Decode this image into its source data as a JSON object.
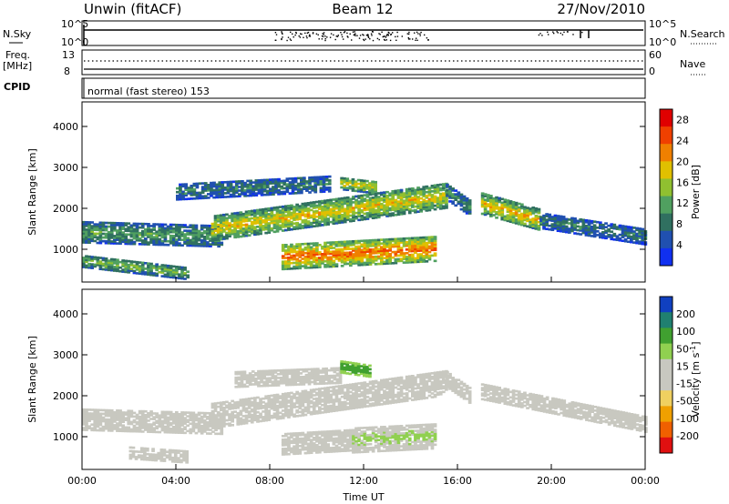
{
  "header": {
    "station": "Unwin (fitACF)",
    "beam": "Beam 12",
    "date": "27/Nov/2010"
  },
  "strip_labels": {
    "nsky": "N.Sky",
    "nsearch": "N.Search",
    "freq_line1": "Freq.",
    "freq_line2": "[MHz]",
    "nave": "Nave",
    "cpid": "CPID",
    "cpid_value": "normal (fast stereo) 153",
    "nsky_top": "10^5",
    "nsky_bottom": "10^0",
    "freq_top": "13",
    "freq_bottom": "8",
    "nave_top": "60",
    "nave_bottom": "0"
  },
  "colors": {
    "power": [
      "#1030f0",
      "#2050b0",
      "#307060",
      "#50a060",
      "#90c030",
      "#e0c000",
      "#f08000",
      "#f04000",
      "#e00000"
    ],
    "velocity": [
      "#e01010",
      "#f06000",
      "#f0a000",
      "#f0d060",
      "#c8c8c0",
      "#c8c8c0",
      "#90d050",
      "#40a030",
      "#208070",
      "#1040c0"
    ]
  },
  "chart_data": [
    {
      "type": "heatmap",
      "name": "power",
      "ylabel": "Slant Range [km]",
      "xlabel": "",
      "yticks": [
        1000,
        2000,
        3000,
        4000
      ],
      "ylim": [
        200,
        4600
      ],
      "xlim": [
        0,
        24
      ],
      "xticks": [
        "00:00",
        "04:00",
        "08:00",
        "12:00",
        "16:00",
        "20:00",
        "00:00"
      ],
      "colorbar": {
        "label": "Power [dB]",
        "ticks": [
          "4",
          "8",
          "12",
          "16",
          "20",
          "24",
          "28"
        ],
        "range": [
          0,
          30
        ]
      },
      "regions": [
        {
          "t0": 0.0,
          "t1": 4.5,
          "r_start": 700,
          "r_end": 400,
          "width": 150,
          "level": 14
        },
        {
          "t0": 0.0,
          "t1": 6.0,
          "r_start": 1400,
          "r_end": 1300,
          "width": 250,
          "level": 12
        },
        {
          "t0": 5.5,
          "t1": 15.5,
          "r_start": 1500,
          "r_end": 2300,
          "width": 300,
          "level": 19
        },
        {
          "t0": 8.5,
          "t1": 15.0,
          "r_start": 800,
          "r_end": 1000,
          "width": 300,
          "level": 24
        },
        {
          "t0": 4.0,
          "t1": 10.5,
          "r_start": 2400,
          "r_end": 2600,
          "width": 200,
          "level": 9
        },
        {
          "t0": 11.0,
          "t1": 12.5,
          "r_start": 2600,
          "r_end": 2500,
          "width": 150,
          "level": 18
        },
        {
          "t0": 15.5,
          "t1": 16.5,
          "r_start": 2400,
          "r_end": 2000,
          "width": 200,
          "level": 10
        },
        {
          "t0": 17.0,
          "t1": 19.5,
          "r_start": 2100,
          "r_end": 1700,
          "width": 250,
          "level": 20
        },
        {
          "t0": 19.5,
          "t1": 24.0,
          "r_start": 1700,
          "r_end": 1300,
          "width": 200,
          "level": 9
        }
      ]
    },
    {
      "type": "heatmap",
      "name": "velocity",
      "ylabel": "Slant Range [km]",
      "xlabel": "Time UT",
      "yticks": [
        1000,
        2000,
        3000,
        4000
      ],
      "ylim": [
        200,
        4600
      ],
      "xlim": [
        0,
        24
      ],
      "xticks": [
        "00:00",
        "04:00",
        "08:00",
        "12:00",
        "16:00",
        "20:00",
        "00:00"
      ],
      "colorbar": {
        "label": "Velocity [m s^-1]",
        "ticks": [
          "200",
          "100",
          "50",
          "15",
          "-15",
          "-50",
          "-100",
          "-200"
        ],
        "range": [
          -250,
          250
        ]
      },
      "regions": [
        {
          "t0": 0.0,
          "t1": 6.0,
          "r_start": 1400,
          "r_end": 1300,
          "width": 250,
          "level": 0
        },
        {
          "t0": 5.5,
          "t1": 15.5,
          "r_start": 1500,
          "r_end": 2300,
          "width": 300,
          "level": 0
        },
        {
          "t0": 8.5,
          "t1": 11.5,
          "r_start": 800,
          "r_end": 900,
          "width": 250,
          "level": -40
        },
        {
          "t0": 11.5,
          "t1": 15.0,
          "r_start": 900,
          "r_end": 1000,
          "width": 300,
          "level": 60
        },
        {
          "t0": 6.5,
          "t1": 11.0,
          "r_start": 2400,
          "r_end": 2500,
          "width": 200,
          "level": -40
        },
        {
          "t0": 11.0,
          "t1": 12.2,
          "r_start": 2700,
          "r_end": 2600,
          "width": 150,
          "level": 150
        },
        {
          "t0": 15.5,
          "t1": 16.5,
          "r_start": 2400,
          "r_end": 2000,
          "width": 200,
          "level": 0
        },
        {
          "t0": 17.0,
          "t1": 24.0,
          "r_start": 2100,
          "r_end": 1300,
          "width": 200,
          "level": 0
        },
        {
          "t0": 2.0,
          "t1": 4.5,
          "r_start": 600,
          "r_end": 500,
          "width": 150,
          "level": 0
        }
      ]
    }
  ]
}
